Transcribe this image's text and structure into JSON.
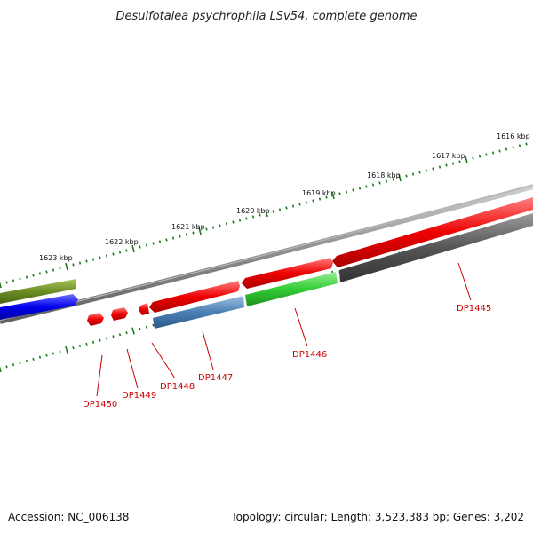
{
  "title": "Desulfotalea psychrophila LSv54, complete genome",
  "footer": {
    "accession": "Accession: NC_006138",
    "summary": "Topology: circular; Length: 3,523,383 bp; Genes: 3,202"
  },
  "scale_labels": [
    "1623 kbp",
    "1622 kbp",
    "1621 kbp",
    "1620 kbp",
    "1619 kbp",
    "1618 kbp",
    "1617 kbp",
    "1616 kbp"
  ],
  "genes": [
    {
      "id": "DP1450",
      "color": "#ee0000"
    },
    {
      "id": "DP1449",
      "color": "#ee0000"
    },
    {
      "id": "DP1448",
      "color": "#ee0000"
    },
    {
      "id": "DP1447",
      "color": "#4a7fb5"
    },
    {
      "id": "DP1446",
      "color": "#33cc33"
    },
    {
      "id": "DP1445",
      "color": "#555555"
    }
  ],
  "colors": {
    "backbone": "#8c8c8c",
    "ticks": "#1a7a1a",
    "olive_feature": "#6b8e23",
    "blue_feature": "#0000ee",
    "label_red": "#cc0000"
  }
}
